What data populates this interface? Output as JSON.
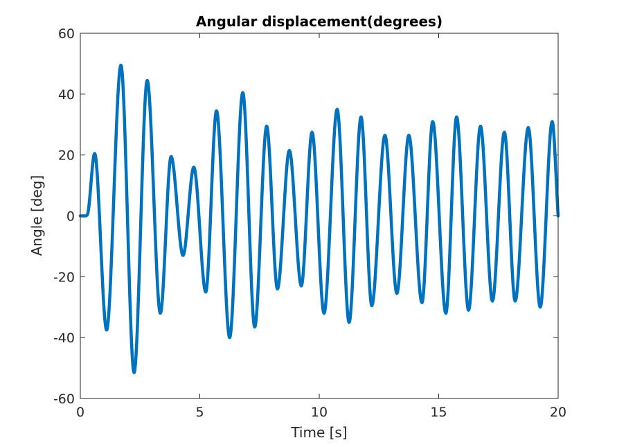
{
  "chart_data": {
    "type": "line",
    "title": "Angular displacement(degrees)",
    "xlabel": "Time [s]",
    "ylabel": "Angle [deg]",
    "xlim": [
      0,
      20
    ],
    "ylim": [
      -60,
      60
    ],
    "xticks": [
      0,
      5,
      10,
      15,
      20
    ],
    "xtick_labels": [
      "0",
      "5",
      "10",
      "15",
      "20"
    ],
    "yticks": [
      -60,
      -40,
      -20,
      0,
      20,
      40,
      60
    ],
    "ytick_labels": [
      "-60",
      "-40",
      "-20",
      "0",
      "20",
      "40",
      "60"
    ],
    "grid": false,
    "line_color": "#0072BD",
    "series": [
      {
        "x": [
          0,
          0.2,
          0.3,
          0.6,
          1.1,
          1.7,
          2.25,
          2.8,
          3.35,
          3.8,
          4.3,
          4.75,
          5.25,
          5.7,
          6.25,
          6.8,
          7.3,
          7.8,
          8.25,
          8.75,
          9.25,
          9.7,
          10.2,
          10.75,
          11.25,
          11.75,
          12.2,
          12.75,
          13.25,
          13.75,
          14.3,
          14.75,
          15.3,
          15.75,
          16.25,
          16.75,
          17.25,
          17.75,
          18.2,
          18.75,
          19.25,
          19.75,
          20
        ],
        "y": [
          0,
          0,
          0.5,
          20.5,
          -37.5,
          49.5,
          -51.5,
          44.5,
          -32,
          19.5,
          -13,
          16,
          -25,
          34.5,
          -40,
          40.5,
          -36.5,
          29.5,
          -24,
          21.5,
          -23,
          27.5,
          -32,
          35,
          -35,
          32.5,
          -29.5,
          26.5,
          -25.5,
          26.5,
          -28.5,
          31,
          -32,
          32.5,
          -31,
          29.5,
          -28,
          27.5,
          -28,
          29,
          -30,
          31,
          0
        ]
      }
    ]
  }
}
